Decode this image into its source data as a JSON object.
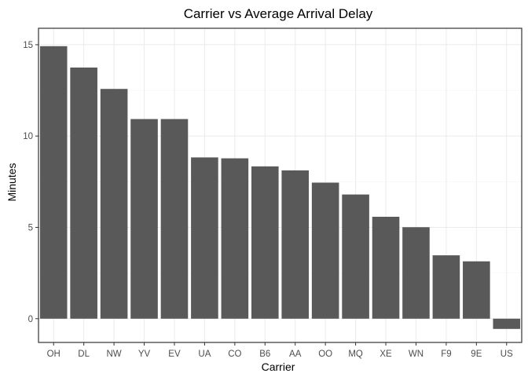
{
  "chart_data": {
    "type": "bar",
    "title": "Carrier vs Average Arrival Delay",
    "xlabel": "Carrier",
    "ylabel": "Minutes",
    "categories": [
      "OH",
      "DL",
      "NW",
      "YV",
      "EV",
      "UA",
      "CO",
      "B6",
      "AA",
      "OO",
      "MQ",
      "XE",
      "WN",
      "F9",
      "9E",
      "US"
    ],
    "values": [
      14.92,
      13.75,
      12.58,
      10.93,
      10.93,
      8.83,
      8.78,
      8.34,
      8.12,
      7.45,
      6.8,
      5.58,
      5.01,
      3.47,
      3.14,
      -0.56
    ],
    "ylim": [
      -1.3,
      15.9
    ],
    "yticks": [
      0,
      5,
      10,
      15
    ],
    "ytick_labels": [
      "0",
      "5",
      "10",
      "15"
    ],
    "grid": true,
    "legend": "none",
    "bar_color": "#595959",
    "grid_color": "#ebebeb",
    "border_color": "#333333"
  }
}
